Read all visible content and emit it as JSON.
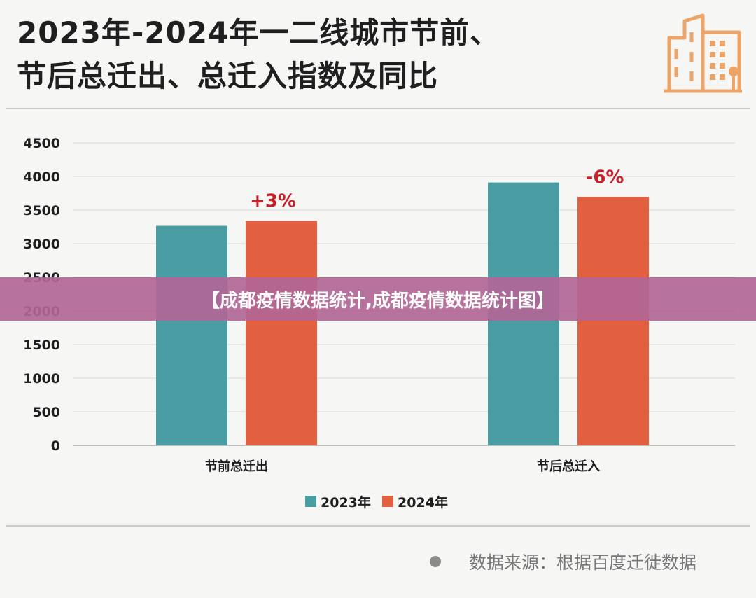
{
  "title_lines": [
    "2023年-2024年一二线城市节前、",
    "节后总迁出、总迁入指数及同比"
  ],
  "banner_text": "【成都疫情数据统计,成都疫情数据统计图】",
  "source_text": "数据来源：根据百度迁徙数据",
  "colors": {
    "series_2023": "#4a9ea3",
    "series_2024": "#e2603f",
    "annotation": "#c8202a",
    "logo": "#eda468",
    "banner": "#b26696"
  },
  "chart_data": {
    "type": "bar",
    "categories": [
      "节前总迁出",
      "节后总迁入"
    ],
    "series": [
      {
        "name": "2023年",
        "values": [
          3265,
          3910
        ]
      },
      {
        "name": "2024年",
        "values": [
          3340,
          3695
        ]
      }
    ],
    "annotations": [
      "+3%",
      "-6%"
    ],
    "ylim": [
      0,
      4500
    ],
    "yticks": [
      0,
      500,
      1000,
      1500,
      2000,
      2500,
      3000,
      3500,
      4000,
      4500
    ],
    "grid": true,
    "legend": "bottom-center"
  }
}
